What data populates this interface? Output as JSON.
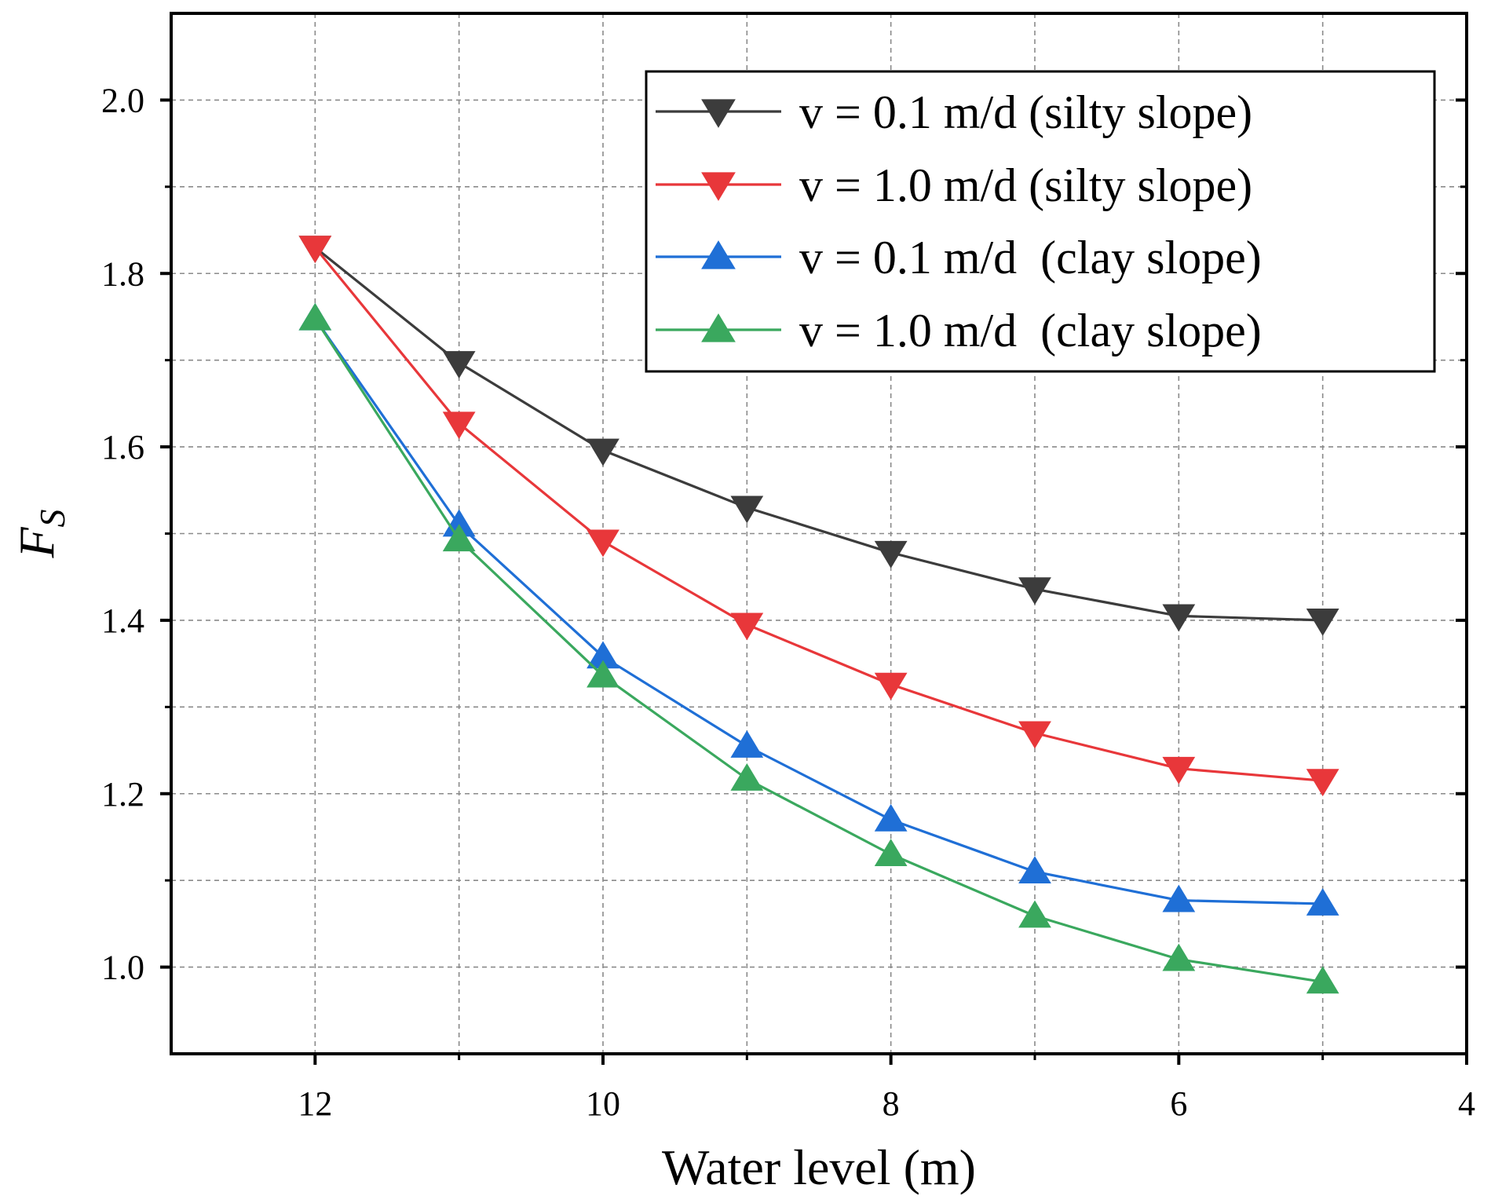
{
  "chart_data": {
    "type": "line",
    "title": "",
    "xlabel": "Water level (m)",
    "ylabel": {
      "main": "F",
      "sub": "S"
    },
    "x_reversed": true,
    "xlim": [
      13,
      4
    ],
    "ylim": [
      0.9,
      2.1
    ],
    "x_ticks": [
      12,
      10,
      8,
      6,
      4
    ],
    "x_minor_ticks": [
      13,
      11,
      9,
      7,
      5
    ],
    "y_ticks": [
      1.0,
      1.2,
      1.4,
      1.6,
      1.8,
      2.0
    ],
    "y_tick_labels": [
      "1.0",
      "1.2",
      "1.4",
      "1.6",
      "1.8",
      "2.0"
    ],
    "y_minor_ticks": [
      0.9,
      1.1,
      1.3,
      1.5,
      1.7,
      1.9,
      2.1
    ],
    "grid": true,
    "legend_position": "top-right",
    "x": [
      12,
      11,
      10,
      9,
      8,
      7,
      6,
      5
    ],
    "series": [
      {
        "name": "v = 0.1 m/d (silty slope)",
        "color": "#3c3c3c",
        "marker": "triangle-down",
        "values": [
          1.83,
          1.697,
          1.596,
          1.53,
          1.478,
          1.436,
          1.405,
          1.4
        ]
      },
      {
        "name": "v = 1.0 m/d (silty slope)",
        "color": "#e8373a",
        "marker": "triangle-down",
        "values": [
          1.83,
          1.627,
          1.491,
          1.395,
          1.326,
          1.27,
          1.229,
          1.215
        ]
      },
      {
        "name": "v = 0.1 m/d  (clay slope)",
        "color": "#1f6fd6",
        "marker": "triangle-up",
        "values": [
          1.748,
          1.51,
          1.358,
          1.255,
          1.17,
          1.11,
          1.077,
          1.073
        ]
      },
      {
        "name": "v = 1.0 m/d  (clay slope)",
        "color": "#3aa85e",
        "marker": "triangle-up",
        "values": [
          1.748,
          1.493,
          1.336,
          1.217,
          1.13,
          1.059,
          1.009,
          0.983
        ]
      }
    ]
  }
}
